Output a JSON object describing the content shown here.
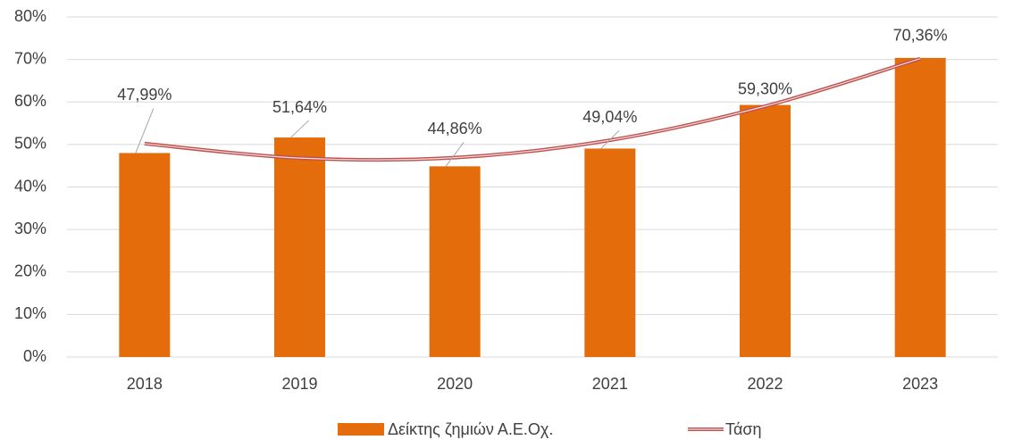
{
  "chart_data": {
    "type": "bar",
    "categories": [
      "2018",
      "2019",
      "2020",
      "2021",
      "2022",
      "2023"
    ],
    "series": [
      {
        "name": "Δείκτης ζημιών Α.Ε.Οχ.",
        "type": "bar",
        "color": "#e46c0a",
        "values": [
          47.99,
          51.64,
          44.86,
          49.04,
          59.3,
          70.36
        ],
        "value_labels": [
          "47,99%",
          "51,64%",
          "44,86%",
          "49,04%",
          "59,30%",
          "70,36%"
        ]
      },
      {
        "name": "Τάση",
        "type": "line",
        "color": "#c0504d",
        "values": [
          50.2,
          46.8,
          46.9,
          51.0,
          59.0,
          70.2
        ]
      }
    ],
    "ylim": [
      0,
      80
    ],
    "yticks": [
      {
        "value": 0,
        "label": "0%"
      },
      {
        "value": 10,
        "label": "10%"
      },
      {
        "value": 20,
        "label": "20%"
      },
      {
        "value": 30,
        "label": "30%"
      },
      {
        "value": 40,
        "label": "40%"
      },
      {
        "value": 50,
        "label": "50%"
      },
      {
        "value": 60,
        "label": "60%"
      },
      {
        "value": 70,
        "label": "70%"
      },
      {
        "value": 80,
        "label": "80%"
      }
    ],
    "grid": true
  }
}
